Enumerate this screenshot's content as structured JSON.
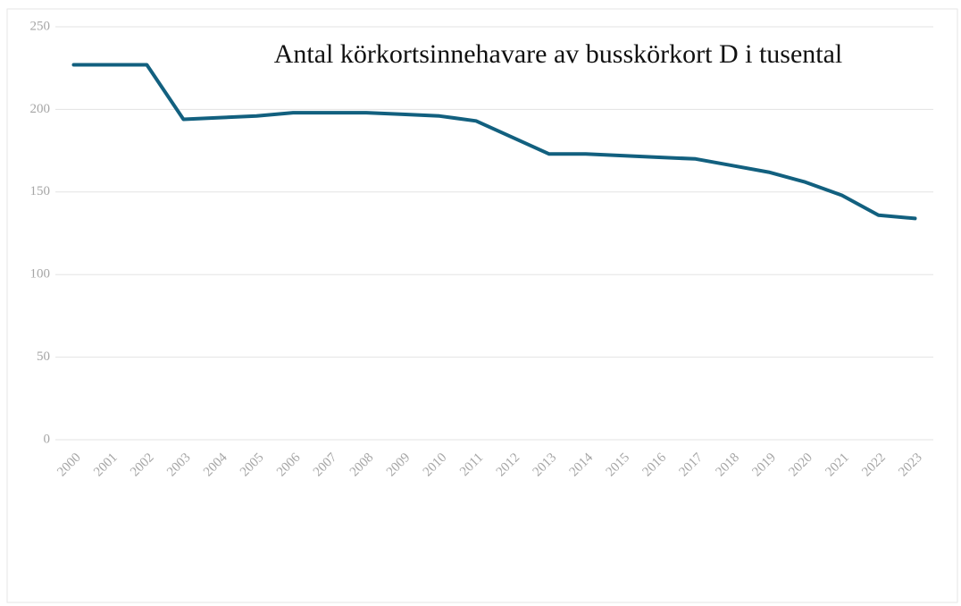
{
  "chart_data": {
    "type": "line",
    "title": "Antal körkortsinnehavare av busskörkort D i tusental",
    "categories": [
      "2000",
      "2001",
      "2002",
      "2003",
      "2004",
      "2005",
      "2006",
      "2007",
      "2008",
      "2009",
      "2010",
      "2011",
      "2012",
      "2013",
      "2014",
      "2015",
      "2016",
      "2017",
      "2018",
      "2019",
      "2020",
      "2021",
      "2022",
      "2023"
    ],
    "values": [
      227,
      227,
      227,
      194,
      195,
      196,
      198,
      198,
      198,
      197,
      196,
      193,
      183,
      173,
      173,
      172,
      171,
      170,
      166,
      162,
      156,
      148,
      136,
      134
    ],
    "color": "#12607f",
    "ylim": [
      0,
      250
    ],
    "yticks": [
      0,
      50,
      100,
      150,
      200,
      250
    ],
    "grid": true
  }
}
